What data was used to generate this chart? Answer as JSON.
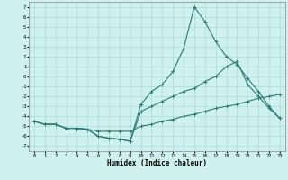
{
  "xlabel": "Humidex (Indice chaleur)",
  "xlim": [
    -0.5,
    23.5
  ],
  "ylim": [
    -7.5,
    7.5
  ],
  "xticks": [
    0,
    1,
    2,
    3,
    4,
    5,
    6,
    7,
    8,
    9,
    10,
    11,
    12,
    13,
    14,
    15,
    16,
    17,
    18,
    19,
    20,
    21,
    22,
    23
  ],
  "yticks": [
    7,
    6,
    5,
    4,
    3,
    2,
    1,
    0,
    -1,
    -2,
    -3,
    -4,
    -5,
    -6,
    -7
  ],
  "background_color": "#cef0ee",
  "grid_color": "#aadcda",
  "line_color": "#2a7c76",
  "line1_x": [
    0,
    1,
    2,
    3,
    4,
    5,
    6,
    7,
    8,
    9,
    10,
    11,
    12,
    13,
    14,
    15,
    16,
    17,
    18,
    19,
    20,
    21,
    22,
    23
  ],
  "line1_y": [
    -4.5,
    -4.8,
    -4.8,
    -5.2,
    -5.2,
    -5.3,
    -6.0,
    -6.2,
    -6.3,
    -6.5,
    -2.8,
    -1.5,
    -0.8,
    0.5,
    2.8,
    7.0,
    5.5,
    3.5,
    2.0,
    1.2,
    -0.2,
    -1.5,
    -3.0,
    -4.2
  ],
  "line2_x": [
    0,
    1,
    2,
    3,
    4,
    5,
    6,
    7,
    8,
    9,
    10,
    11,
    12,
    13,
    14,
    15,
    16,
    17,
    18,
    19,
    20,
    21,
    22,
    23
  ],
  "line2_y": [
    -4.5,
    -4.8,
    -4.8,
    -5.2,
    -5.2,
    -5.3,
    -6.0,
    -6.2,
    -6.3,
    -6.5,
    -3.5,
    -3.0,
    -2.5,
    -2.0,
    -1.5,
    -1.2,
    -0.5,
    0.0,
    1.0,
    1.5,
    -0.8,
    -2.0,
    -3.2,
    -4.2
  ],
  "line3_x": [
    0,
    1,
    2,
    3,
    4,
    5,
    6,
    7,
    8,
    9,
    10,
    11,
    12,
    13,
    14,
    15,
    16,
    17,
    18,
    19,
    20,
    21,
    22,
    23
  ],
  "line3_y": [
    -4.5,
    -4.8,
    -4.8,
    -5.2,
    -5.2,
    -5.3,
    -5.5,
    -5.5,
    -5.5,
    -5.5,
    -5.0,
    -4.8,
    -4.5,
    -4.3,
    -4.0,
    -3.8,
    -3.5,
    -3.2,
    -3.0,
    -2.8,
    -2.5,
    -2.2,
    -2.0,
    -1.8
  ]
}
